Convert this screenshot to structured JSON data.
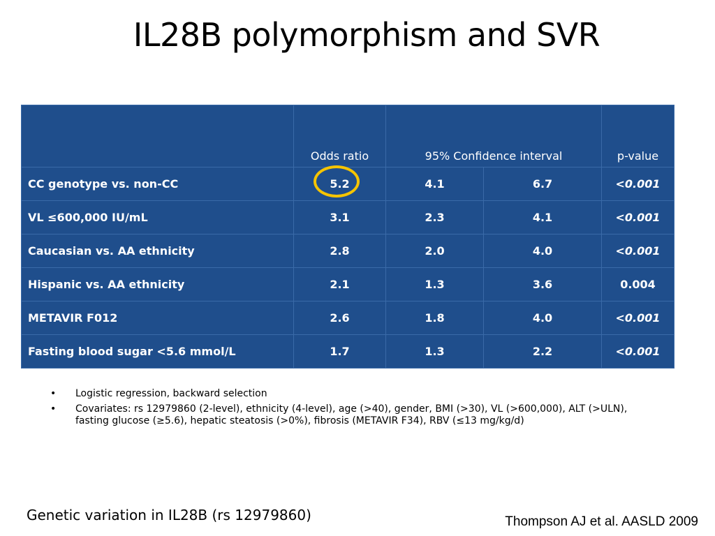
{
  "title": "IL28B polymorphism and SVR",
  "chart_data": {
    "type": "table",
    "columns": [
      "",
      "Odds ratio",
      "95% Confidence interval",
      "",
      "p-value"
    ],
    "header": {
      "odds_ratio": "Odds ratio",
      "ci": "95% Confidence interval",
      "p_value": "p-value"
    },
    "rows": [
      {
        "label": "CC genotype vs. non-CC",
        "odds_ratio": "5.2",
        "ci_low": "4.1",
        "ci_high": "6.7",
        "p_value": "<0.001"
      },
      {
        "label": "VL ≤600,000 IU/mL",
        "odds_ratio": "3.1",
        "ci_low": "2.3",
        "ci_high": "4.1",
        "p_value": "<0.001"
      },
      {
        "label": "Caucasian vs. AA ethnicity",
        "odds_ratio": "2.8",
        "ci_low": "2.0",
        "ci_high": "4.0",
        "p_value": "<0.001"
      },
      {
        "label": "Hispanic vs. AA ethnicity",
        "odds_ratio": "2.1",
        "ci_low": "1.3",
        "ci_high": "3.6",
        "p_value": "0.004"
      },
      {
        "label": "METAVIR F012",
        "odds_ratio": "2.6",
        "ci_low": "1.8",
        "ci_high": "4.0",
        "p_value": "<0.001"
      },
      {
        "label": "Fasting blood sugar <5.6 mmol/L",
        "odds_ratio": "1.7",
        "ci_low": "1.3",
        "ci_high": "2.2",
        "p_value": "<0.001"
      }
    ],
    "highlight": {
      "row": 0,
      "column": "odds_ratio",
      "color": "#f5c400"
    },
    "table_color": "#1f4e8c"
  },
  "bullets": [
    "Logistic regression, backward selection",
    "Covariates: rs 12979860 (2-level), ethnicity (4-level), age (>40), gender, BMI (>30), VL (>600,000), ALT (>ULN), fasting glucose (≥5.6), hepatic steatosis (>0%), fibrosis (METAVIR F34), RBV (≤13 mg/kg/d)"
  ],
  "footer": {
    "left": "Genetic variation in IL28B (rs 12979860)",
    "right": "Thompson AJ et al.  AASLD  2009"
  }
}
